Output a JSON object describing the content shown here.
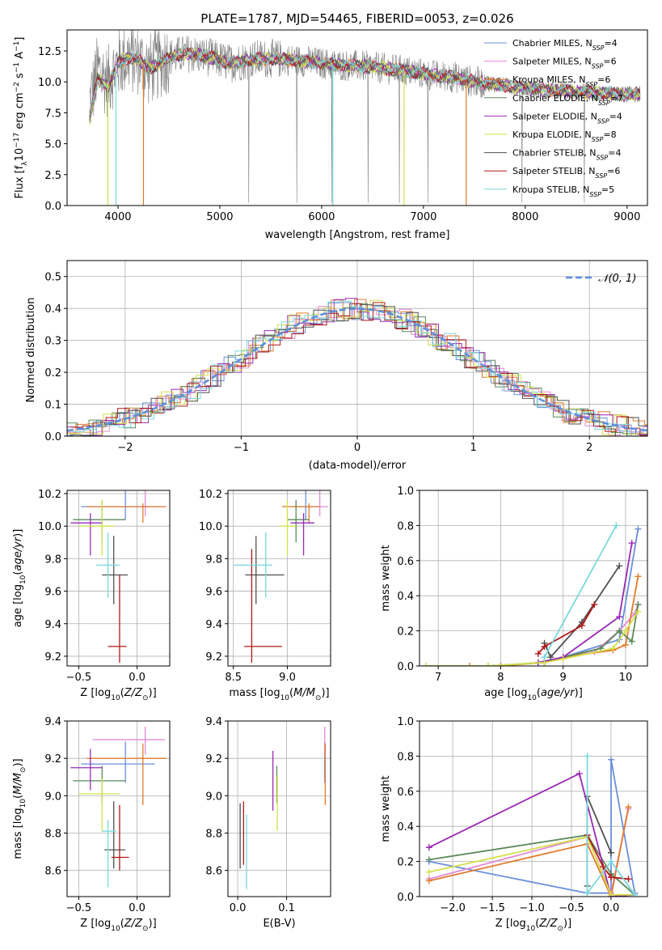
{
  "chart_data": [
    {
      "type": "line",
      "title": "PLATE=1787, MJD=54465, FIBERID=0053, z=0.026",
      "xlabel": "wavelength [Angstrom, rest frame]",
      "ylabel": "Flux [f_λ 10^-17 erg cm^-2 s^-1 A^-1]",
      "xlim": [
        3500,
        9200
      ],
      "ylim": [
        0,
        14.2
      ],
      "xticks": [
        4000,
        5000,
        6000,
        7000,
        8000,
        9000
      ],
      "yticks": [
        0.0,
        2.5,
        5.0,
        7.5,
        10.0,
        12.5
      ],
      "legend_loc": "upper-right",
      "series": [
        {
          "name": "Chabrier MILES, N_SSP=4",
          "color": "#6a8fdc"
        },
        {
          "name": "Salpeter MILES, N_SSP=6",
          "color": "#e48ad6"
        },
        {
          "name": "Kroupa MILES, N_SSP=6",
          "color": "#e07b2c"
        },
        {
          "name": "Chabrier ELODIE, N_SSP=7",
          "color": "#5a8a5a"
        },
        {
          "name": "Salpeter ELODIE, N_SSP=4",
          "color": "#9a2ab4"
        },
        {
          "name": "Kroupa ELODIE, N_SSP=8",
          "color": "#d4e04a"
        },
        {
          "name": "Chabrier STELIB, N_SSP=4",
          "color": "#505050"
        },
        {
          "name": "Salpeter STELIB, N_SSP=6",
          "color": "#b01818"
        },
        {
          "name": "Kroupa STELIB, N_SSP=5",
          "color": "#7ad8dc"
        }
      ],
      "continuum": {
        "x": [
          3700,
          3800,
          3900,
          4000,
          4100,
          4200,
          4300,
          4500,
          4700,
          4900,
          5100,
          5300,
          5500,
          5700,
          5900,
          6100,
          6300,
          6500,
          6700,
          6900,
          7100,
          7300,
          7500,
          7700,
          7900,
          8100,
          8300,
          8500,
          8700,
          8900,
          9100
        ],
        "y": [
          7.5,
          11.0,
          10.0,
          11.5,
          12.0,
          11.8,
          11.0,
          12.0,
          12.3,
          12.0,
          11.5,
          11.8,
          11.9,
          11.8,
          11.6,
          11.4,
          11.3,
          11.2,
          11.0,
          10.8,
          10.5,
          10.4,
          10.0,
          9.8,
          9.6,
          9.4,
          9.3,
          9.2,
          9.1,
          9.0,
          9.0
        ]
      },
      "data_color": "#808080"
    },
    {
      "type": "bar",
      "xlabel": "(data-model)/error",
      "ylabel": "Normed distribution",
      "xlim": [
        -2.5,
        2.5
      ],
      "ylim": [
        0,
        0.55
      ],
      "xticks": [
        -2,
        -1,
        0,
        1,
        2
      ],
      "yticks": [
        0.0,
        0.1,
        0.2,
        0.3,
        0.4,
        0.5
      ],
      "legend": "𝒩(0, 1)",
      "legend_loc": "upper-right",
      "gaussian_color": "#5b8fdc"
    },
    {
      "type": "scatter",
      "xlabel": "Z [log10(Z/Z⊙)]",
      "ylabel": "age  [log10(age/yr)]",
      "xlim": [
        -0.6,
        0.28
      ],
      "ylim": [
        9.14,
        10.22
      ],
      "xticks": [
        -0.5,
        0.0
      ],
      "yticks": [
        9.2,
        9.4,
        9.6,
        9.8,
        10.0,
        10.2
      ],
      "points": [
        {
          "color": "#6a8fdc",
          "x": -0.1,
          "xerr": [
            0.38,
            0.22
          ],
          "y": 10.12,
          "yerr": [
            0.08,
            0.1
          ]
        },
        {
          "color": "#e48ad6",
          "x": 0.07,
          "xerr": [
            0.45,
            0.17
          ],
          "y": 10.12,
          "yerr": [
            0.06,
            0.1
          ]
        },
        {
          "color": "#e07b2c",
          "x": 0.05,
          "xerr": [
            0.48,
            0.2
          ],
          "y": 10.12,
          "yerr": [
            0.1,
            0.02
          ]
        },
        {
          "color": "#5a8a5a",
          "x": -0.3,
          "xerr": [
            0.25,
            0.2
          ],
          "y": 10.04,
          "yerr": [
            0.14,
            0.12
          ]
        },
        {
          "color": "#9a2ab4",
          "x": -0.4,
          "xerr": [
            0.17,
            0.1
          ],
          "y": 10.02,
          "yerr": [
            0.2,
            0.06
          ]
        },
        {
          "color": "#d4e04a",
          "x": -0.3,
          "xerr": [
            0.2,
            0.1
          ],
          "y": 10.0,
          "yerr": [
            0.18,
            0.16
          ]
        },
        {
          "color": "#505050",
          "x": -0.2,
          "xerr": [
            0.1,
            0.12
          ],
          "y": 9.7,
          "yerr": [
            0.18,
            0.24
          ]
        },
        {
          "color": "#b01818",
          "x": -0.15,
          "xerr": [
            0.1,
            0.06
          ],
          "y": 9.26,
          "yerr": [
            0.1,
            0.44
          ]
        },
        {
          "color": "#7ad8dc",
          "x": -0.25,
          "xerr": [
            0.1,
            0.1
          ],
          "y": 9.76,
          "yerr": [
            0.2,
            0.2
          ]
        }
      ]
    },
    {
      "type": "scatter",
      "xlabel": "mass [log10(M/M⊙)]",
      "xlim": [
        8.45,
        9.4
      ],
      "ylim": [
        9.14,
        10.22
      ],
      "xticks": [
        8.5,
        9.0
      ],
      "yticks": [
        9.2,
        9.4,
        9.6,
        9.8,
        10.0,
        10.2
      ],
      "points": [
        {
          "color": "#6a8fdc",
          "x": 9.17,
          "xerr": [
            0.12,
            0.1
          ],
          "y": 10.12,
          "yerr": [
            0.08,
            0.1
          ]
        },
        {
          "color": "#e48ad6",
          "x": 9.3,
          "xerr": [
            0.1,
            0.08
          ],
          "y": 10.12,
          "yerr": [
            0.06,
            0.1
          ]
        },
        {
          "color": "#e07b2c",
          "x": 9.2,
          "xerr": [
            0.25,
            0.1
          ],
          "y": 10.12,
          "yerr": [
            0.1,
            0.02
          ]
        },
        {
          "color": "#5a8a5a",
          "x": 9.08,
          "xerr": [
            0.08,
            0.12
          ],
          "y": 10.04,
          "yerr": [
            0.14,
            0.12
          ]
        },
        {
          "color": "#9a2ab4",
          "x": 9.15,
          "xerr": [
            0.12,
            0.1
          ],
          "y": 10.02,
          "yerr": [
            0.2,
            0.06
          ]
        },
        {
          "color": "#d4e04a",
          "x": 9.0,
          "xerr": [
            0.08,
            0.08
          ],
          "y": 10.0,
          "yerr": [
            0.18,
            0.16
          ]
        },
        {
          "color": "#505050",
          "x": 8.71,
          "xerr": [
            0.1,
            0.26
          ],
          "y": 9.7,
          "yerr": [
            0.18,
            0.24
          ]
        },
        {
          "color": "#b01818",
          "x": 8.67,
          "xerr": [
            0.07,
            0.28
          ],
          "y": 9.26,
          "yerr": [
            0.1,
            0.6
          ]
        },
        {
          "color": "#7ad8dc",
          "x": 8.8,
          "xerr": [
            0.3,
            0.06
          ],
          "y": 9.76,
          "yerr": [
            0.2,
            0.2
          ]
        }
      ]
    },
    {
      "type": "line",
      "xlabel": "age  [log10(age/yr)]",
      "ylabel": "mass weight",
      "xlim": [
        6.7,
        10.35
      ],
      "ylim": [
        0,
        1.0
      ],
      "xticks": [
        7,
        8,
        9,
        10
      ],
      "yticks": [
        0.0,
        0.2,
        0.4,
        0.6,
        0.8,
        1.0
      ],
      "series": [
        {
          "color": "#6a8fdc",
          "x": [
            8.7,
            9.0,
            9.9,
            10.2
          ],
          "y": [
            0.02,
            0.05,
            0.15,
            0.78
          ]
        },
        {
          "color": "#e48ad6",
          "x": [
            8.7,
            9.0,
            9.5,
            9.9,
            10.15,
            10.2
          ],
          "y": [
            0.02,
            0.05,
            0.08,
            0.2,
            0.3,
            0.35
          ]
        },
        {
          "color": "#e07b2c",
          "x": [
            6.8,
            7.5,
            8.0,
            8.7,
            9.0,
            9.8,
            10.0,
            10.2
          ],
          "y": [
            0.0,
            0.0,
            0.0,
            0.02,
            0.05,
            0.09,
            0.12,
            0.51
          ]
        },
        {
          "color": "#5a8a5a",
          "x": [
            6.8,
            7.8,
            8.7,
            9.0,
            9.6,
            9.9,
            10.1,
            10.2
          ],
          "y": [
            0.0,
            0.0,
            0.02,
            0.05,
            0.1,
            0.2,
            0.14,
            0.35
          ]
        },
        {
          "color": "#9a2ab4",
          "x": [
            8.6,
            9.0,
            9.9,
            10.1
          ],
          "y": [
            0.02,
            0.05,
            0.28,
            0.7
          ]
        },
        {
          "color": "#d4e04a",
          "x": [
            6.8,
            7.8,
            8.7,
            9.0,
            9.8,
            10.0,
            10.2
          ],
          "y": [
            0.0,
            0.0,
            0.02,
            0.04,
            0.1,
            0.2,
            0.31
          ]
        },
        {
          "color": "#505050",
          "x": [
            8.7,
            8.8,
            9.3,
            9.9
          ],
          "y": [
            0.13,
            0.05,
            0.25,
            0.57
          ]
        },
        {
          "color": "#b01818",
          "x": [
            8.6,
            8.7,
            9.3,
            9.5
          ],
          "y": [
            0.07,
            0.11,
            0.23,
            0.35
          ]
        },
        {
          "color": "#7ad8dc",
          "x": [
            8.7,
            9.85
          ],
          "y": [
            0.05,
            0.8
          ]
        }
      ]
    },
    {
      "type": "scatter",
      "xlabel": "Z [log10(Z/Z⊙)]",
      "ylabel": "mass [log10(M/M⊙)]",
      "xlim": [
        -0.6,
        0.28
      ],
      "ylim": [
        8.46,
        9.4
      ],
      "xticks": [
        -0.5,
        0.0
      ],
      "yticks": [
        8.6,
        8.8,
        9.0,
        9.2,
        9.4
      ],
      "points": [
        {
          "color": "#6a8fdc",
          "x": -0.1,
          "xerr": [
            0.38,
            0.25
          ],
          "y": 9.17,
          "yerr": [
            0.1,
            0.12
          ]
        },
        {
          "color": "#e48ad6",
          "x": 0.07,
          "xerr": [
            0.45,
            0.17
          ],
          "y": 9.3,
          "yerr": [
            0.08,
            0.07
          ]
        },
        {
          "color": "#e07b2c",
          "x": 0.05,
          "xerr": [
            0.48,
            0.2
          ],
          "y": 9.2,
          "yerr": [
            0.25,
            0.08
          ]
        },
        {
          "color": "#5a8a5a",
          "x": -0.3,
          "xerr": [
            0.25,
            0.2
          ],
          "y": 9.08,
          "yerr": [
            0.12,
            0.08
          ]
        },
        {
          "color": "#9a2ab4",
          "x": -0.4,
          "xerr": [
            0.17,
            0.1
          ],
          "y": 9.15,
          "yerr": [
            0.12,
            0.1
          ]
        },
        {
          "color": "#d4e04a",
          "x": -0.3,
          "xerr": [
            0.2,
            0.15
          ],
          "y": 9.01,
          "yerr": [
            0.2,
            0.08
          ]
        },
        {
          "color": "#505050",
          "x": -0.2,
          "xerr": [
            0.08,
            0.1
          ],
          "y": 8.71,
          "yerr": [
            0.1,
            0.26
          ]
        },
        {
          "color": "#b01818",
          "x": -0.15,
          "xerr": [
            0.07,
            0.08
          ],
          "y": 8.67,
          "yerr": [
            0.07,
            0.28
          ]
        },
        {
          "color": "#7ad8dc",
          "x": -0.25,
          "xerr": [
            0.05,
            0.07
          ],
          "y": 8.81,
          "yerr": [
            0.3,
            0.06
          ]
        }
      ]
    },
    {
      "type": "scatter",
      "xlabel": "E(B-V)",
      "xlim": [
        -0.02,
        0.19
      ],
      "ylim": [
        8.46,
        9.4
      ],
      "xticks": [
        0.0,
        0.1
      ],
      "yticks": [
        8.6,
        8.8,
        9.0,
        9.2,
        9.4
      ],
      "points": [
        {
          "color": "#6a8fdc",
          "x": 0.178,
          "y": 9.17,
          "yerr": [
            0.1,
            0.12
          ]
        },
        {
          "color": "#e48ad6",
          "x": 0.178,
          "y": 9.3,
          "yerr": [
            0.08,
            0.07
          ]
        },
        {
          "color": "#e07b2c",
          "x": 0.179,
          "y": 9.2,
          "yerr": [
            0.25,
            0.08
          ]
        },
        {
          "color": "#5a8a5a",
          "x": 0.08,
          "y": 9.08,
          "yerr": [
            0.12,
            0.08
          ]
        },
        {
          "color": "#9a2ab4",
          "x": 0.072,
          "y": 9.15,
          "yerr": [
            0.23,
            0.09
          ]
        },
        {
          "color": "#d4e04a",
          "x": 0.081,
          "y": 9.01,
          "yerr": [
            0.2,
            0.1
          ]
        },
        {
          "color": "#505050",
          "x": 0.005,
          "y": 8.78,
          "yerr": [
            0.17,
            0.18
          ]
        },
        {
          "color": "#b01818",
          "x": 0.012,
          "y": 8.8,
          "yerr": [
            0.17,
            0.17
          ]
        },
        {
          "color": "#7ad8dc",
          "x": 0.018,
          "y": 8.7,
          "yerr": [
            0.2,
            0.2
          ]
        }
      ]
    },
    {
      "type": "line",
      "xlabel": "Z [log10(Z/Z⊙)]",
      "ylabel": "mass weight",
      "xlim": [
        -2.42,
        0.46
      ],
      "ylim": [
        0,
        1.0
      ],
      "xticks": [
        -2.0,
        -1.5,
        -1.0,
        -0.5,
        0.0
      ],
      "yticks": [
        0.0,
        0.2,
        0.4,
        0.6,
        0.8,
        1.0
      ],
      "series": [
        {
          "color": "#6a8fdc",
          "x": [
            -2.3,
            -0.3,
            0.0,
            0.0,
            0.3
          ],
          "y": [
            0.2,
            0.02,
            0.02,
            0.78,
            0.02
          ]
        },
        {
          "color": "#e48ad6",
          "x": [
            -2.3,
            -0.3,
            0.0,
            0.22
          ],
          "y": [
            0.1,
            0.34,
            0.02,
            0.5
          ]
        },
        {
          "color": "#e07b2c",
          "x": [
            -2.3,
            -0.3,
            0.0,
            0.22
          ],
          "y": [
            0.09,
            0.3,
            0.0,
            0.51
          ]
        },
        {
          "color": "#5a8a5a",
          "x": [
            -2.3,
            -0.3,
            0.0,
            0.3
          ],
          "y": [
            0.21,
            0.35,
            0.13,
            0.01
          ]
        },
        {
          "color": "#9a2ab4",
          "x": [
            -2.3,
            -0.4,
            0.0,
            0.3
          ],
          "y": [
            0.28,
            0.7,
            0.0,
            0.01
          ]
        },
        {
          "color": "#d4e04a",
          "x": [
            -2.3,
            -0.3,
            0.0,
            0.3
          ],
          "y": [
            0.14,
            0.34,
            0.01,
            0.01
          ]
        },
        {
          "color": "#505050",
          "x": [
            -0.3,
            -0.3,
            0.0
          ],
          "y": [
            0.06,
            0.57,
            0.25
          ]
        },
        {
          "color": "#b01818",
          "x": [
            -0.3,
            -0.1,
            0.0,
            0.22
          ],
          "y": [
            0.35,
            0.17,
            0.11,
            0.1
          ]
        },
        {
          "color": "#7ad8dc",
          "x": [
            -0.3,
            -0.3,
            0.0,
            0.3
          ],
          "y": [
            0.8,
            0.02,
            0.2,
            0.01
          ]
        }
      ]
    }
  ]
}
